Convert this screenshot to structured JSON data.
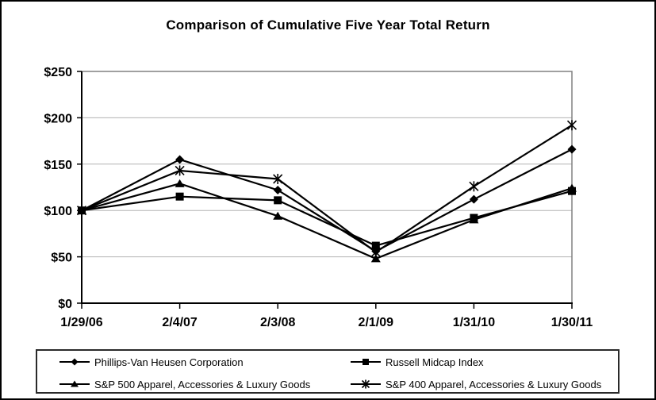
{
  "chart_data": {
    "type": "line",
    "title": "Comparison of Cumulative Five Year Total Return",
    "categories": [
      "1/29/06",
      "2/4/07",
      "2/3/08",
      "2/1/09",
      "1/31/10",
      "1/30/11"
    ],
    "series": [
      {
        "name": "Phillips-Van Heusen Corporation",
        "marker": "diamond",
        "color": "#000000",
        "values": [
          100,
          155,
          122,
          56,
          112,
          166
        ]
      },
      {
        "name": "Russell Midcap Index",
        "marker": "square",
        "color": "#000000",
        "values": [
          100,
          115,
          111,
          62,
          92,
          121
        ]
      },
      {
        "name": "S&P 500 Apparel, Accessories & Luxury Goods",
        "marker": "triangle",
        "color": "#000000",
        "values": [
          100,
          129,
          94,
          48,
          90,
          124
        ]
      },
      {
        "name": "S&P 400 Apparel, Accessories & Luxury Goods",
        "marker": "asterisk",
        "color": "#000000",
        "values": [
          100,
          143,
          134,
          55,
          126,
          192
        ]
      }
    ],
    "y_axis": {
      "min": 0,
      "max": 250,
      "step": 50,
      "tick_labels": [
        "$0",
        "$50",
        "$100",
        "$150",
        "$200",
        "$250"
      ]
    },
    "x_axis": {
      "tick_labels": [
        "1/29/06",
        "2/4/07",
        "2/3/08",
        "2/1/09",
        "1/31/10",
        "1/30/11"
      ]
    },
    "grid": true,
    "legend_position": "bottom",
    "colors": {
      "line": "#000000",
      "gridline": "#b3b3b3",
      "plot_frame": "#808080",
      "axis": "#000000",
      "text": "#000000",
      "background": "#ffffff"
    }
  }
}
